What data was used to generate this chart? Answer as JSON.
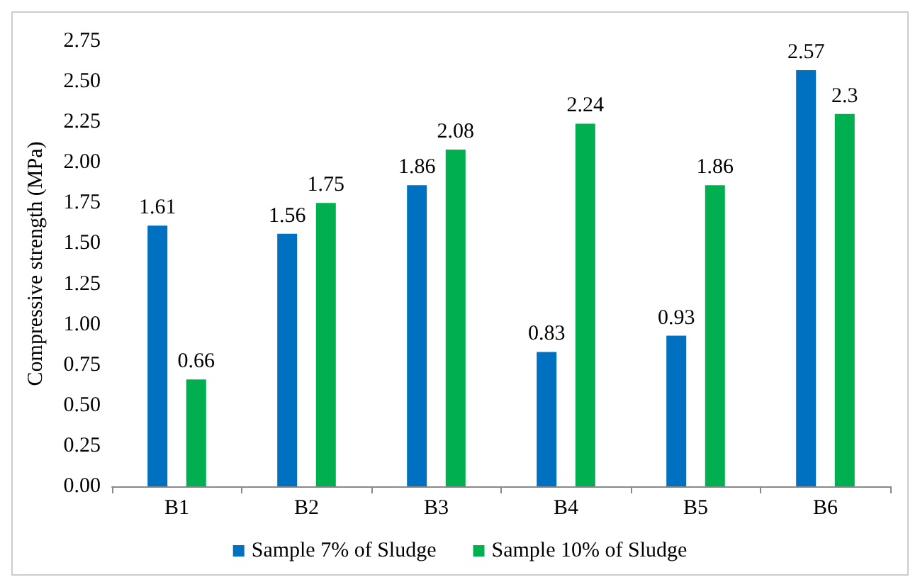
{
  "chart_data": {
    "type": "bar",
    "ylabel": "Compressive strength (MPa)",
    "categories": [
      "B1",
      "B2",
      "B3",
      "B4",
      "B5",
      "B6"
    ],
    "series": [
      {
        "name": "Sample 7% of Sludge",
        "color": "#0070c0",
        "values": [
          1.61,
          1.56,
          1.86,
          0.83,
          0.93,
          2.57
        ]
      },
      {
        "name": "Sample 10% of Sludge",
        "color": "#00b050",
        "values": [
          0.66,
          1.75,
          2.08,
          2.24,
          1.86,
          2.3
        ]
      }
    ],
    "ylim": [
      0,
      2.75
    ],
    "yticks": [
      {
        "value": 0,
        "label": "0.00"
      },
      {
        "value": 0.25,
        "label": "0.25"
      },
      {
        "value": 0.5,
        "label": "0.50"
      },
      {
        "value": 0.75,
        "label": "0.75"
      },
      {
        "value": 1,
        "label": "1.00"
      },
      {
        "value": 1.25,
        "label": "1.25"
      },
      {
        "value": 1.5,
        "label": "1.50"
      },
      {
        "value": 1.75,
        "label": "1.75"
      },
      {
        "value": 2,
        "label": "2.00"
      },
      {
        "value": 2.25,
        "label": "2.25"
      },
      {
        "value": 2.5,
        "label": "2.50"
      },
      {
        "value": 2.75,
        "label": "2.75"
      }
    ],
    "data_labels": true,
    "legend": "bottom",
    "grid": false
  }
}
